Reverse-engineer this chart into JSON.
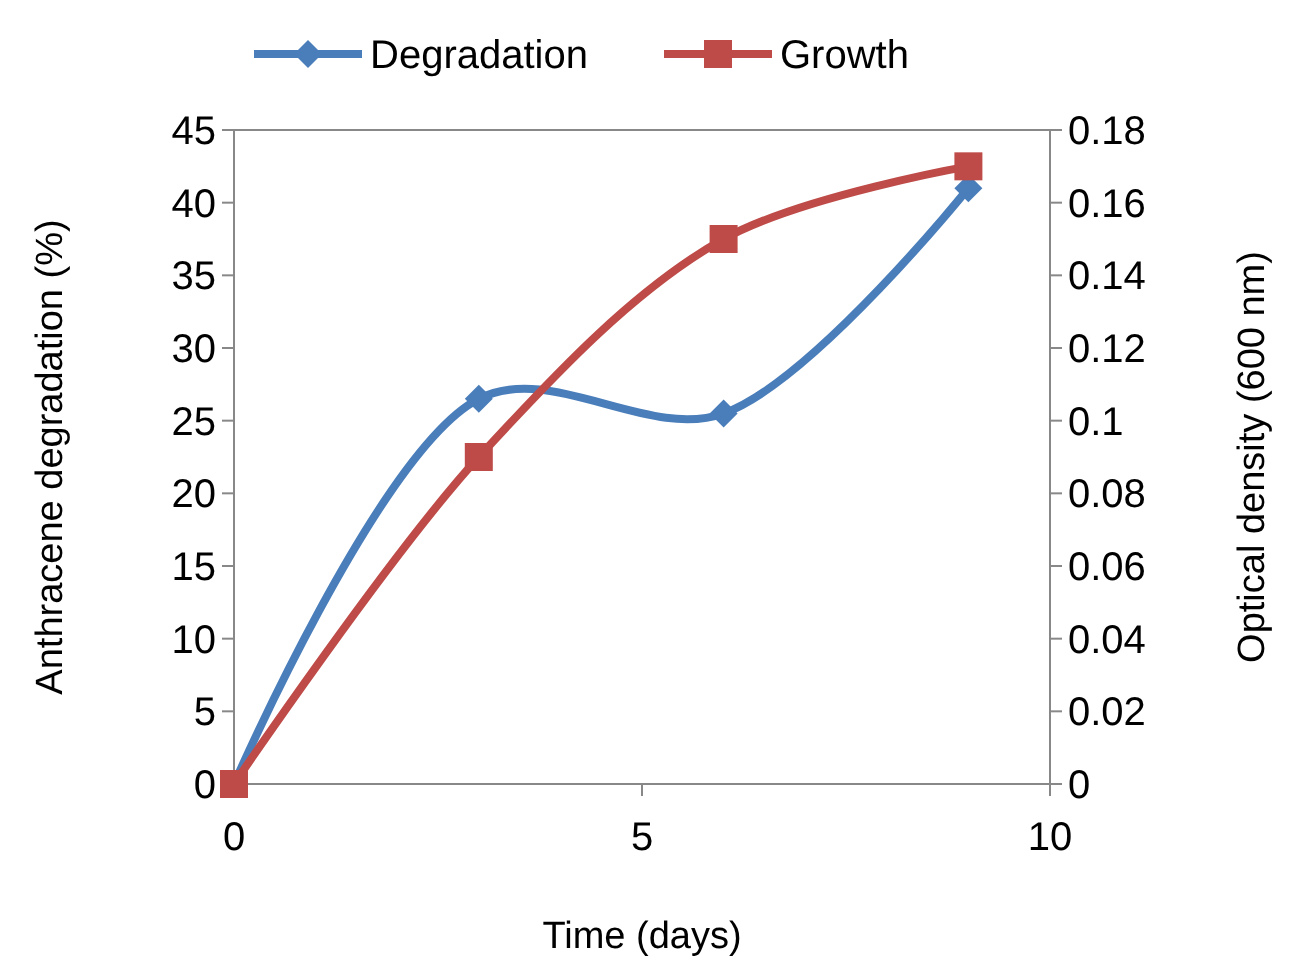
{
  "chart_data": {
    "type": "line",
    "xlabel": "Time (days)",
    "ylabel": "Anthracene degradation (%)",
    "y2label": "Optical density (600 nm)",
    "x": [
      0,
      3,
      6,
      9
    ],
    "xlim": [
      0,
      10
    ],
    "xticks": [
      0,
      5,
      10
    ],
    "ylim": [
      0,
      45
    ],
    "yticks": [
      0,
      5,
      10,
      15,
      20,
      25,
      30,
      35,
      40,
      45
    ],
    "y2lim": [
      0,
      0.18
    ],
    "y2ticks": [
      {
        "value": 0,
        "label": "0"
      },
      {
        "value": 0.02,
        "label": "0.02"
      },
      {
        "value": 0.04,
        "label": "0.04"
      },
      {
        "value": 0.06,
        "label": "0.06"
      },
      {
        "value": 0.08,
        "label": "0.08"
      },
      {
        "value": 0.1,
        "label": "0.1"
      },
      {
        "value": 0.12,
        "label": "0.12"
      },
      {
        "value": 0.14,
        "label": "0.14"
      },
      {
        "value": 0.16,
        "label": "0.16"
      },
      {
        "value": 0.18,
        "label": "0.18"
      }
    ],
    "legend": "top",
    "grid": false,
    "series": [
      {
        "name": "Degradation",
        "color": "#4a7ebb",
        "values": [
          0,
          26.5,
          25.5,
          41
        ],
        "marker": "diamond"
      },
      {
        "name": "Growth",
        "color": "#be4b48",
        "values": [
          0,
          0.09,
          0.15,
          0.17
        ],
        "axis": "y2",
        "marker": "square"
      }
    ]
  }
}
